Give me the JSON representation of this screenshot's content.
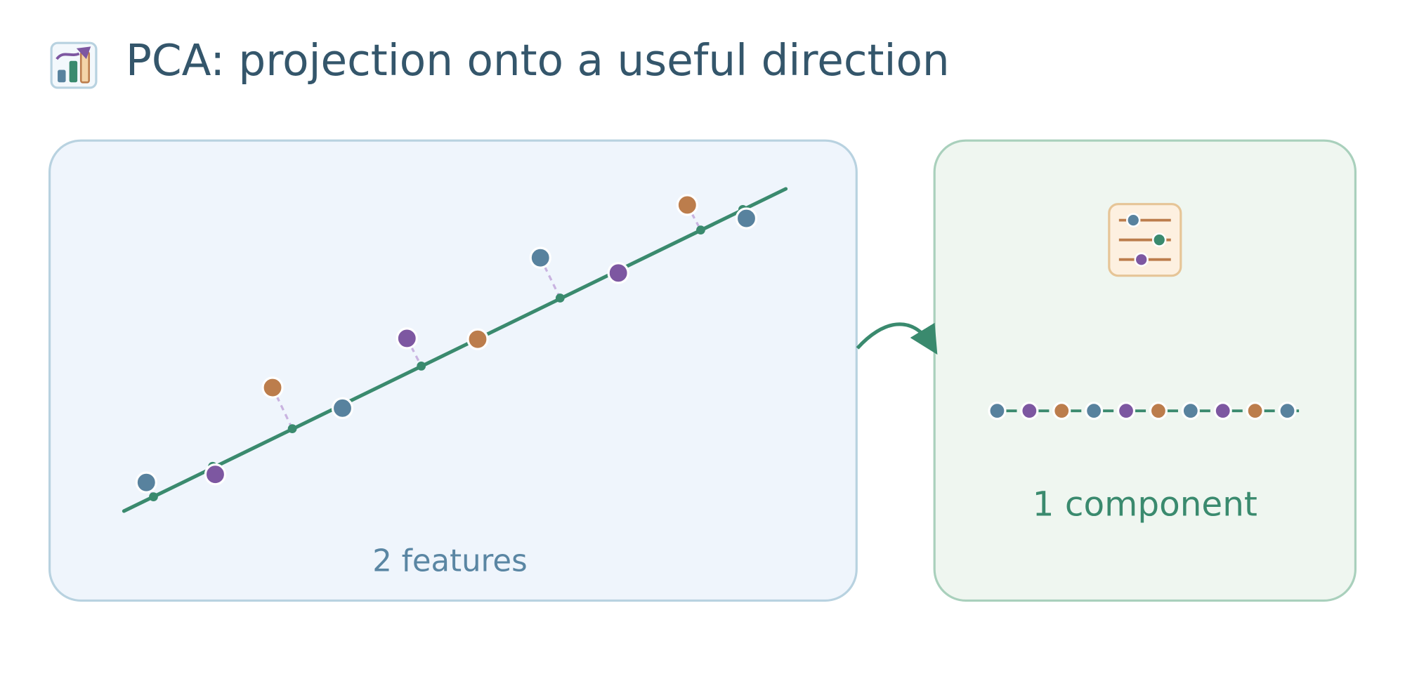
{
  "header": {
    "title": "PCA: projection onto a useful direction"
  },
  "panels": [
    {
      "label": "2 features"
    },
    {
      "label": "1 component"
    }
  ]
}
